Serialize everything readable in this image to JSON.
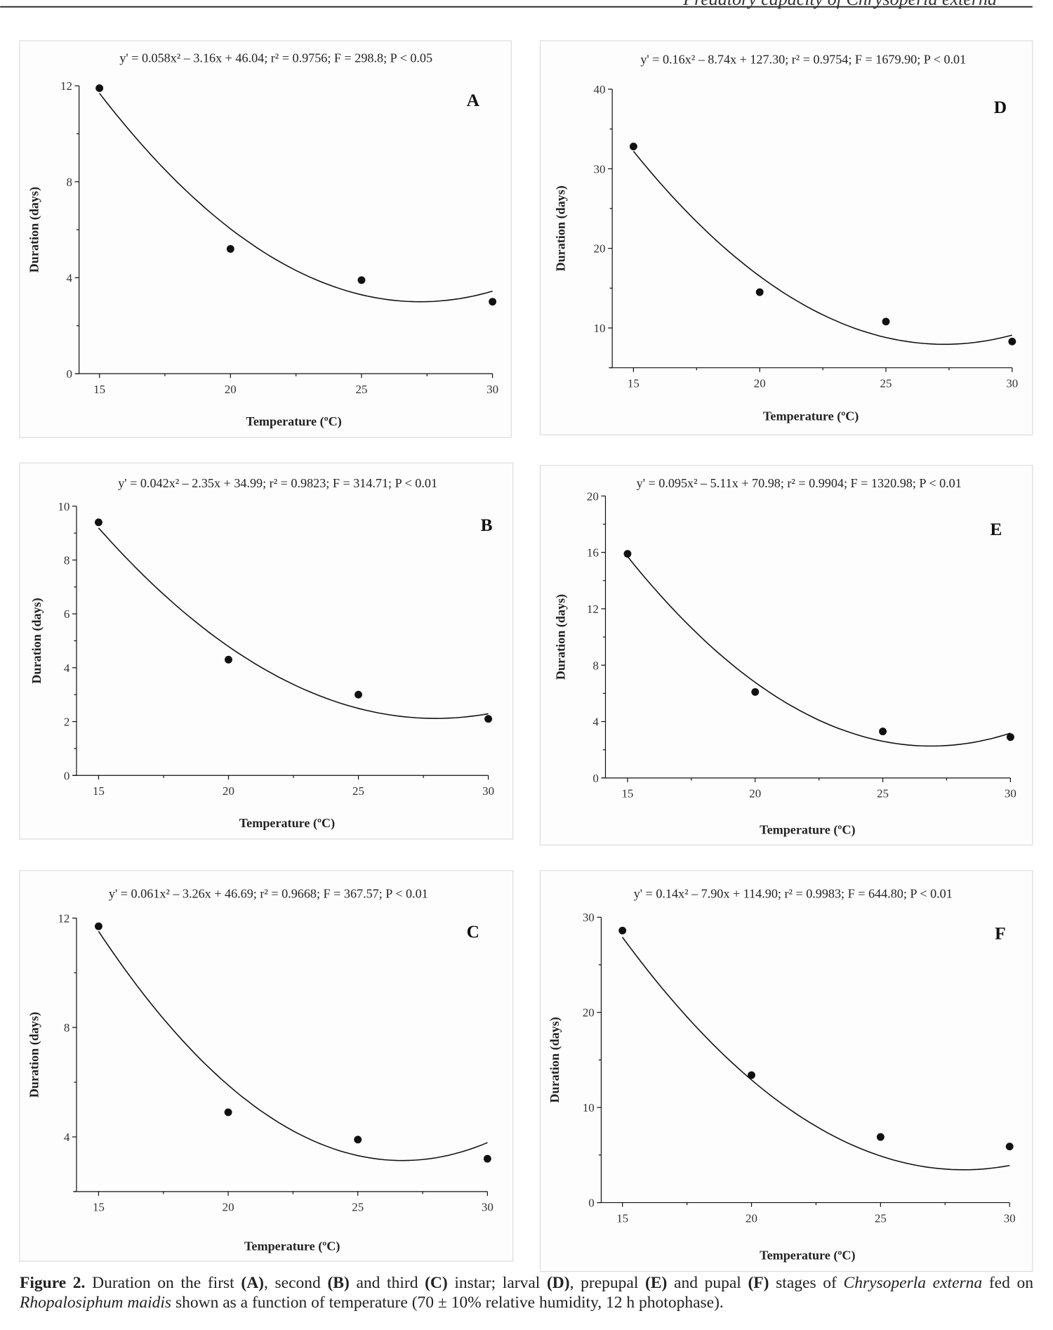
{
  "running_header": "Predatory capacity of Chrysoperla externa",
  "caption": {
    "label": "Figure 2.",
    "parts": [
      {
        "t": " Duration on the first ",
        "b": false,
        "i": false
      },
      {
        "t": "(A)",
        "b": true,
        "i": false
      },
      {
        "t": ", second ",
        "b": false,
        "i": false
      },
      {
        "t": "(B)",
        "b": true,
        "i": false
      },
      {
        "t": " and third ",
        "b": false,
        "i": false
      },
      {
        "t": "(C)",
        "b": true,
        "i": false
      },
      {
        "t": " instar; larval ",
        "b": false,
        "i": false
      },
      {
        "t": "(D)",
        "b": true,
        "i": false
      },
      {
        "t": ", prepupal ",
        "b": false,
        "i": false
      },
      {
        "t": "(E)",
        "b": true,
        "i": false
      },
      {
        "t": " and pupal ",
        "b": false,
        "i": false
      },
      {
        "t": "(F)",
        "b": true,
        "i": false
      },
      {
        "t": " stages of ",
        "b": false,
        "i": false
      },
      {
        "t": "Chrysoperla externa",
        "b": false,
        "i": true
      },
      {
        "t": " fed on ",
        "b": false,
        "i": false
      },
      {
        "t": "Rhopalosiphum maidis",
        "b": false,
        "i": true
      },
      {
        "t": " shown as a function of temperature (70 ± 10% relative humidity, 12 h photophase).",
        "b": false,
        "i": false
      }
    ]
  },
  "colors": {
    "ink": "#111111",
    "panel_border": "#dddddd"
  },
  "chart_data": [
    {
      "panel": "A",
      "type": "scatter",
      "equation": "y' = 0.058x² – 3.16x + 46.04; r² = 0.9756; F = 298.8; P < 0.05",
      "fit": [
        0.058,
        -3.16,
        46.04
      ],
      "x": [
        15,
        20,
        25,
        30
      ],
      "y": [
        11.9,
        5.2,
        3.9,
        3.0
      ],
      "xlabel": "Temperature (ºC)",
      "ylabel": "Duration (days)",
      "xlim": [
        15,
        30
      ],
      "ylim": [
        0,
        12
      ],
      "xticks": [
        15,
        20,
        25,
        30
      ],
      "yticks": [
        0,
        4,
        8,
        12
      ]
    },
    {
      "panel": "D",
      "type": "scatter",
      "equation": "y' = 0.16x² – 8.74x + 127.30; r² = 0.9754; F = 1679.90; P < 0.01",
      "fit": [
        0.16,
        -8.74,
        127.3
      ],
      "x": [
        15,
        20,
        25,
        30
      ],
      "y": [
        32.8,
        14.5,
        10.8,
        8.3
      ],
      "xlabel": "Temperature (ºC)",
      "ylabel": "Duration (days)",
      "xlim": [
        15,
        30
      ],
      "ylim": [
        5,
        40
      ],
      "xticks": [
        15,
        20,
        25,
        30
      ],
      "yticks": [
        10,
        20,
        30,
        40
      ]
    },
    {
      "panel": "B",
      "type": "scatter",
      "equation": "y' = 0.042x² – 2.35x + 34.99; r² = 0.9823; F = 314.71; P < 0.01",
      "fit": [
        0.042,
        -2.35,
        34.99
      ],
      "x": [
        15,
        20,
        25,
        30
      ],
      "y": [
        9.4,
        4.3,
        3.0,
        2.1
      ],
      "xlabel": "Temperature (ºC)",
      "ylabel": "Duration (days)",
      "xlim": [
        15,
        30
      ],
      "ylim": [
        0,
        10
      ],
      "xticks": [
        15,
        20,
        25,
        30
      ],
      "yticks": [
        0,
        2,
        4,
        6,
        8,
        10
      ]
    },
    {
      "panel": "E",
      "type": "scatter",
      "equation": "y' = 0.095x² – 5.11x + 70.98; r² = 0.9904; F = 1320.98; P < 0.01",
      "fit": [
        0.095,
        -5.11,
        70.98
      ],
      "x": [
        15,
        20,
        25,
        30
      ],
      "y": [
        15.9,
        6.1,
        3.3,
        2.9
      ],
      "xlabel": "Temperature (ºC)",
      "ylabel": "Duration (days)",
      "xlim": [
        15,
        30
      ],
      "ylim": [
        0,
        20
      ],
      "xticks": [
        15,
        20,
        25,
        30
      ],
      "yticks": [
        0,
        4,
        8,
        12,
        16,
        20
      ]
    },
    {
      "panel": "C",
      "type": "scatter",
      "equation": "y' = 0.061x² – 3.26x + 46.69; r² = 0.9668; F = 367.57; P < 0.01",
      "fit": [
        0.061,
        -3.26,
        46.69
      ],
      "x": [
        15,
        20,
        25,
        30
      ],
      "y": [
        11.7,
        4.9,
        3.9,
        3.2
      ],
      "xlabel": "Temperature (ºC)",
      "ylabel": "Duration (days)",
      "xlim": [
        15,
        30
      ],
      "ylim": [
        2,
        12
      ],
      "xticks": [
        15,
        20,
        25,
        30
      ],
      "yticks": [
        4,
        8,
        12
      ]
    },
    {
      "panel": "F",
      "type": "scatter",
      "equation": "y' = 0.14x² – 7.90x + 114.90; r² = 0.9983; F = 644.80; P < 0.01",
      "fit": [
        0.14,
        -7.9,
        114.9
      ],
      "x": [
        15,
        20,
        25,
        30
      ],
      "y": [
        28.6,
        13.4,
        6.9,
        5.9
      ],
      "xlabel": "Temperature (ºC)",
      "ylabel": "Duration (days)",
      "xlim": [
        15,
        30
      ],
      "ylim": [
        0,
        30
      ],
      "xticks": [
        15,
        20,
        25,
        30
      ],
      "yticks": [
        0,
        10,
        20,
        30
      ]
    }
  ]
}
